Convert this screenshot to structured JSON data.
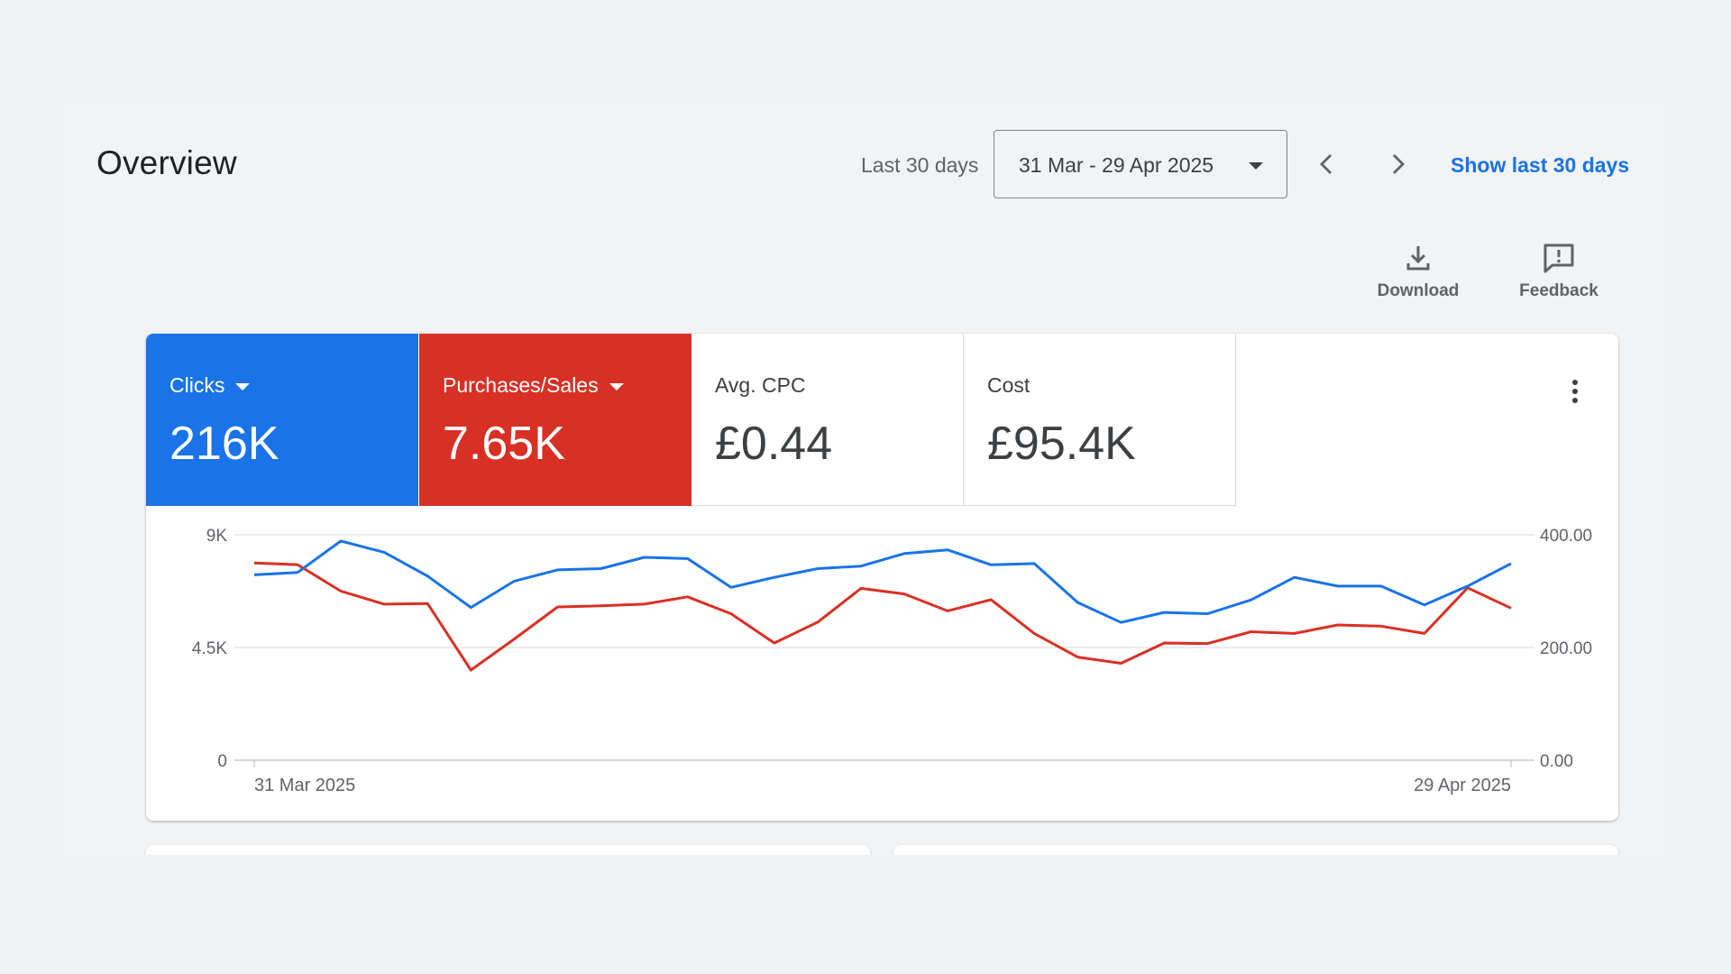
{
  "header": {
    "title": "Overview",
    "range_label": "Last 30 days",
    "date_range": "31 Mar - 29 Apr 2025",
    "show_link": "Show last 30 days"
  },
  "toolbar": {
    "download_label": "Download",
    "feedback_label": "Feedback"
  },
  "metrics": [
    {
      "label": "Clicks",
      "value": "216K",
      "color": "#1a73e8",
      "selected": true
    },
    {
      "label": "Purchases/Sales",
      "value": "7.65K",
      "color": "#d93025",
      "selected": true
    },
    {
      "label": "Avg. CPC",
      "value": "£0.44",
      "selected": false
    },
    {
      "label": "Cost",
      "value": "£95.4K",
      "selected": false
    }
  ],
  "chart_data": {
    "type": "line",
    "x_start_label": "31 Mar 2025",
    "x_end_label": "29 Apr 2025",
    "left_axis": {
      "ticks": [
        "0",
        "4.5K",
        "9K"
      ],
      "range": [
        0,
        9000
      ]
    },
    "right_axis": {
      "ticks": [
        "0.00",
        "200.00",
        "400.00"
      ],
      "range": [
        0,
        400
      ]
    },
    "grid": true,
    "series": [
      {
        "name": "Clicks",
        "axis": "left",
        "color": "#1a73e8",
        "values": [
          7400,
          7500,
          8750,
          8300,
          7350,
          6100,
          7150,
          7600,
          7650,
          8100,
          8050,
          6900,
          7300,
          7650,
          7750,
          8250,
          8400,
          7800,
          7850,
          6300,
          5500,
          5900,
          5850,
          6400,
          7300,
          6950,
          6950,
          6200,
          6950,
          7850
        ]
      },
      {
        "name": "Purchases/Sales",
        "axis": "right",
        "color": "#d93025",
        "values": [
          350,
          347,
          300,
          277,
          278,
          160,
          215,
          272,
          274,
          277,
          290,
          260,
          208,
          245,
          305,
          295,
          265,
          285,
          225,
          183,
          172,
          208,
          207,
          228,
          225,
          240,
          238,
          225,
          306,
          270
        ]
      }
    ]
  }
}
